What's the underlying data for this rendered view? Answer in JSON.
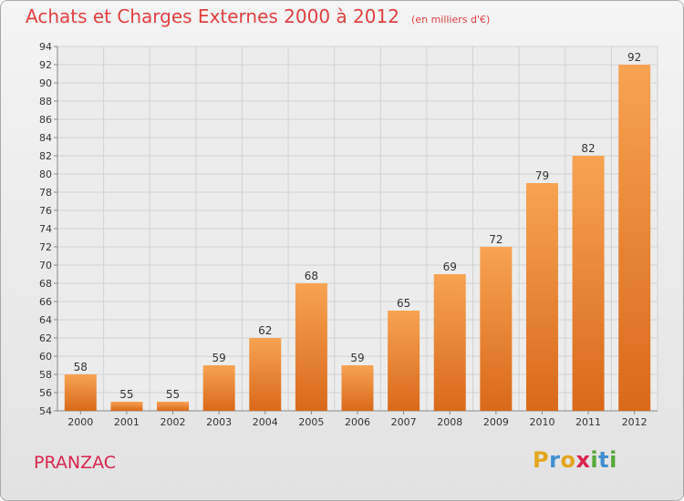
{
  "chart_data": {
    "type": "bar",
    "title": "Achats et Charges Externes 2000 à 2012",
    "unit_note": "(en milliers d'€)",
    "categories": [
      "2000",
      "2001",
      "2002",
      "2003",
      "2004",
      "2005",
      "2006",
      "2007",
      "2008",
      "2009",
      "2010",
      "2011",
      "2012"
    ],
    "values": [
      58,
      55,
      55,
      59,
      62,
      68,
      59,
      65,
      69,
      72,
      79,
      82,
      92
    ],
    "ylim": [
      54,
      94
    ],
    "ytick_step": 2,
    "grid": true,
    "xlabel": "",
    "ylabel": "",
    "colors": {
      "bar_top": "#f7a352",
      "bar_bottom": "#d9691a",
      "title": "#e0403f"
    }
  },
  "footer": {
    "place": "PRANZAC",
    "logo_letters": [
      "P",
      "r",
      "o",
      "x",
      "i",
      "t",
      "i"
    ],
    "logo_colors": [
      "#e3a51d",
      "#3f8fd0",
      "#e3a51d",
      "#d8254d",
      "#56a83a",
      "#3f8fd0",
      "#56a83a"
    ]
  }
}
